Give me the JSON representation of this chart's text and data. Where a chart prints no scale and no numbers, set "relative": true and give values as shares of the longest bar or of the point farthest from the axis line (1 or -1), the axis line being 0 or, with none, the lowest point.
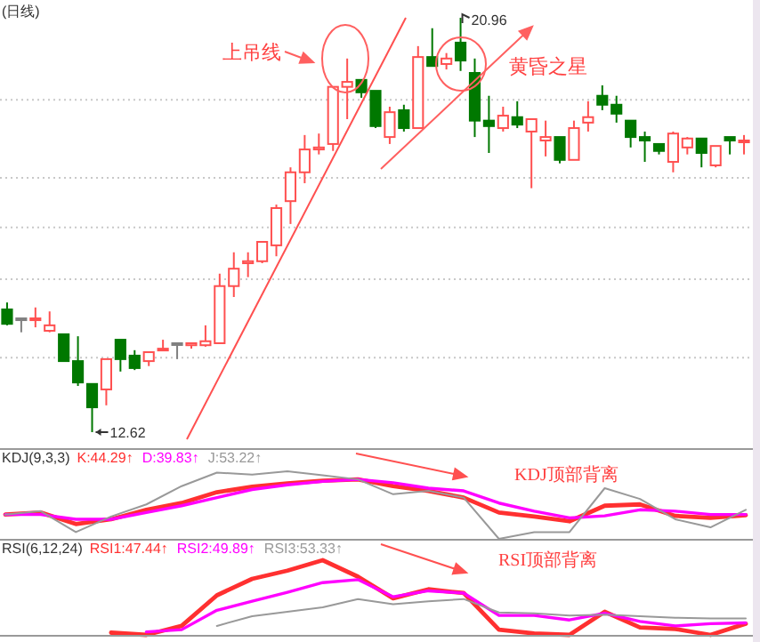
{
  "chart_data": [
    {
      "type": "candlestick",
      "title": "(日线)",
      "categories": [
        null,
        null,
        null,
        null,
        null,
        null,
        null,
        null,
        null,
        null,
        null,
        null,
        null,
        null,
        null,
        null,
        null,
        null,
        null,
        null,
        null,
        null,
        null,
        null,
        null,
        null,
        null,
        null,
        null,
        null,
        null,
        null,
        null,
        null,
        null,
        null,
        null,
        null,
        null,
        null,
        null,
        null,
        null,
        null,
        null,
        null,
        null,
        null,
        null,
        null,
        null,
        null,
        null
      ],
      "ohlc": [
        [
          15.09,
          15.23,
          14.77,
          14.8
        ],
        [
          14.91,
          14.91,
          14.63,
          14.91
        ],
        [
          14.91,
          15.13,
          14.73,
          14.91
        ],
        [
          14.66,
          15.05,
          14.63,
          14.77
        ],
        [
          14.59,
          14.59,
          14.05,
          14.05
        ],
        [
          14.05,
          14.55,
          13.55,
          13.62
        ],
        [
          13.59,
          13.59,
          12.62,
          13.12
        ],
        [
          13.48,
          14.09,
          13.16,
          14.09
        ],
        [
          14.48,
          14.48,
          13.84,
          14.09
        ],
        [
          14.16,
          14.27,
          13.87,
          13.91
        ],
        [
          14.05,
          14.23,
          13.95,
          14.23
        ],
        [
          14.3,
          14.48,
          14.27,
          14.3
        ],
        [
          14.41,
          14.41,
          14.09,
          14.41
        ],
        [
          14.37,
          14.41,
          14.3,
          14.41
        ],
        [
          14.37,
          14.77,
          14.34,
          14.45
        ],
        [
          14.41,
          15.81,
          14.41,
          15.56
        ],
        [
          15.56,
          16.24,
          15.34,
          15.91
        ],
        [
          16.02,
          16.24,
          15.74,
          16.06
        ],
        [
          16.06,
          16.45,
          16.02,
          16.45
        ],
        [
          16.38,
          17.2,
          16.16,
          17.13
        ],
        [
          17.27,
          17.95,
          16.81,
          17.85
        ],
        [
          17.85,
          18.6,
          17.63,
          18.31
        ],
        [
          18.31,
          18.63,
          18.21,
          18.35
        ],
        [
          18.42,
          19.57,
          18.28,
          19.57
        ],
        [
          19.57,
          20.14,
          18.92,
          19.67
        ],
        [
          19.71,
          19.71,
          19.35,
          19.46
        ],
        [
          19.49,
          19.49,
          18.74,
          18.78
        ],
        [
          18.56,
          19.17,
          18.42,
          19.06
        ],
        [
          19.1,
          19.21,
          18.67,
          18.74
        ],
        [
          18.74,
          20.39,
          18.74,
          20.17
        ],
        [
          20.17,
          20.75,
          19.99,
          19.99
        ],
        [
          20.03,
          20.25,
          19.92,
          20.14
        ],
        [
          20.46,
          20.96,
          19.89,
          20.1
        ],
        [
          19.85,
          20.14,
          18.56,
          18.89
        ],
        [
          18.89,
          19.39,
          18.24,
          18.78
        ],
        [
          18.74,
          19.17,
          18.67,
          18.99
        ],
        [
          18.96,
          19.28,
          18.74,
          18.81
        ],
        [
          18.67,
          18.92,
          17.53,
          18.92
        ],
        [
          18.49,
          18.89,
          18.17,
          18.56
        ],
        [
          18.56,
          18.56,
          18.03,
          18.1
        ],
        [
          18.1,
          18.89,
          18.1,
          18.74
        ],
        [
          18.85,
          19.28,
          18.67,
          18.96
        ],
        [
          19.39,
          19.6,
          19.1,
          19.21
        ],
        [
          19.21,
          19.39,
          18.85,
          19.03
        ],
        [
          18.89,
          18.89,
          18.35,
          18.56
        ],
        [
          18.56,
          18.67,
          18.06,
          18.49
        ],
        [
          18.42,
          18.42,
          18.21,
          18.28
        ],
        [
          18.06,
          18.67,
          17.85,
          18.63
        ],
        [
          18.35,
          18.56,
          18.21,
          18.53
        ],
        [
          18.53,
          18.53,
          17.95,
          18.24
        ],
        [
          17.99,
          18.38,
          17.95,
          18.38
        ],
        [
          18.56,
          18.56,
          18.21,
          18.49
        ],
        [
          18.49,
          18.6,
          18.21,
          18.49
        ]
      ],
      "colors": [
        "#007800",
        "#808080",
        "#ff5050",
        "#ff5050",
        "#007800",
        "#007800",
        "#007800",
        "#ff5050",
        "#007800",
        "#007800",
        "#ff5050",
        "#ff5050",
        "#808080",
        "#ff5050",
        "#ff5050",
        "#ff5050",
        "#ff5050",
        "#ff5050",
        "#ff5050",
        "#ff5050",
        "#ff5050",
        "#ff5050",
        "#ff5050",
        "#ff5050",
        "#ff5050",
        "#007800",
        "#007800",
        "#ff5050",
        "#007800",
        "#ff5050",
        "#007800",
        "#ff5050",
        "#007800",
        "#007800",
        "#007800",
        "#ff5050",
        "#007800",
        "#ff5050",
        "#ff5050",
        "#007800",
        "#ff5050",
        "#ff5050",
        "#007800",
        "#007800",
        "#007800",
        "#007800",
        "#007800",
        "#ff5050",
        "#ff5050",
        "#007800",
        "#ff5050",
        "#007800",
        "#ff5050"
      ],
      "yticks": [
        {
          "value": 19.31,
          "label": null
        },
        {
          "value": 17.74,
          "label": null
        },
        {
          "value": 16.74,
          "label": null
        },
        {
          "value": 15.7,
          "label": null
        },
        {
          "value": 14.12,
          "label": null
        }
      ],
      "grid": "y",
      "annotations": [
        "上吊线",
        "黄昏之星",
        "20.96",
        "12.62"
      ]
    },
    {
      "type": "line",
      "title": "KDJ(9,3,3)",
      "categories": [
        null,
        null,
        null,
        null,
        null,
        null,
        null,
        null,
        null,
        null,
        null,
        null,
        null,
        null,
        null,
        null,
        null,
        null,
        null,
        null,
        null,
        null
      ],
      "relative": true,
      "series": [
        {
          "name": "K:44.29↑",
          "color": "#ff3030",
          "values": [
            0.36,
            0.39,
            0.22,
            0.29,
            0.43,
            0.53,
            0.69,
            0.77,
            0.82,
            0.86,
            0.88,
            0.78,
            0.71,
            0.61,
            0.39,
            0.33,
            0.26,
            0.49,
            0.51,
            0.34,
            0.31,
            0.35
          ]
        },
        {
          "name": "D:39.83↑",
          "color": "#ff00ff",
          "values": [
            0.36,
            0.36,
            0.29,
            0.29,
            0.39,
            0.49,
            0.61,
            0.73,
            0.8,
            0.85,
            0.88,
            0.83,
            0.75,
            0.71,
            0.53,
            0.41,
            0.31,
            0.34,
            0.43,
            0.41,
            0.36,
            0.36
          ]
        },
        {
          "name": "J:53.22↑",
          "color": "#999999",
          "values": [
            0.36,
            0.41,
            0.1,
            0.33,
            0.51,
            0.78,
            0.98,
            0.95,
            1.0,
            0.94,
            0.88,
            0.66,
            0.71,
            0.61,
            0.0,
            0.1,
            0.1,
            0.75,
            0.59,
            0.29,
            0.17,
            0.43
          ]
        }
      ],
      "annotations": [
        "KDJ顶部背离"
      ]
    },
    {
      "type": "line",
      "title": "RSI(6,12,24)",
      "categories": [
        null,
        null,
        null,
        null,
        null,
        null,
        null,
        null,
        null,
        null,
        null,
        null,
        null,
        null,
        null,
        null,
        null,
        null,
        null,
        null,
        null,
        null
      ],
      "relative": true,
      "series": [
        {
          "name": "RSI1:47.44↑",
          "color": "#ff3030",
          "values": [
            null,
            null,
            null,
            0.03,
            0.0,
            0.12,
            0.53,
            0.75,
            0.86,
            1.0,
            0.78,
            0.49,
            0.61,
            0.56,
            0.07,
            0.02,
            0.0,
            0.31,
            0.1,
            0.08,
            0.0,
            0.15
          ]
        },
        {
          "name": "RSI2:49.89↑",
          "color": "#ff00ff",
          "values": [
            null,
            null,
            null,
            null,
            0.04,
            0.07,
            0.33,
            0.45,
            0.57,
            0.7,
            0.74,
            0.51,
            0.59,
            0.56,
            0.26,
            0.26,
            0.2,
            0.29,
            0.18,
            0.12,
            0.15,
            0.16
          ]
        },
        {
          "name": "RSI3:53.33↑",
          "color": "#999999",
          "values": [
            null,
            null,
            null,
            null,
            null,
            null,
            0.12,
            0.25,
            0.31,
            0.37,
            0.48,
            0.41,
            0.45,
            0.48,
            0.3,
            0.29,
            0.26,
            0.27,
            0.25,
            0.23,
            0.22,
            0.22
          ]
        }
      ],
      "annotations": [
        "RSI顶部背离"
      ]
    }
  ]
}
